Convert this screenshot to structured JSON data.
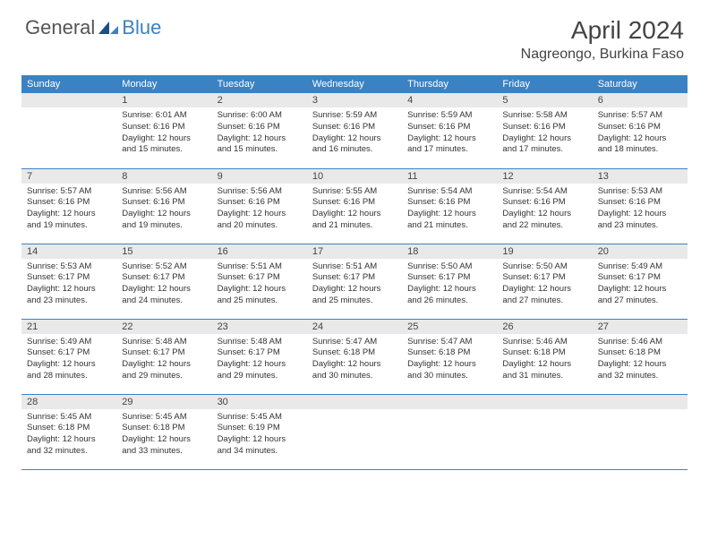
{
  "brand": {
    "general": "General",
    "blue": "Blue"
  },
  "title": "April 2024",
  "location": "Nagreongo, Burkina Faso",
  "colors": {
    "accent": "#3b82c4",
    "header_text": "#ffffff",
    "daybar": "#e9e9e9",
    "border": "#3b82c4",
    "body_bg": "#ffffff",
    "text": "#333333"
  },
  "day_headers": [
    "Sunday",
    "Monday",
    "Tuesday",
    "Wednesday",
    "Thursday",
    "Friday",
    "Saturday"
  ],
  "weeks": [
    [
      null,
      {
        "n": "1",
        "sr": "6:01 AM",
        "ss": "6:16 PM",
        "dl": "12 hours and 15 minutes."
      },
      {
        "n": "2",
        "sr": "6:00 AM",
        "ss": "6:16 PM",
        "dl": "12 hours and 15 minutes."
      },
      {
        "n": "3",
        "sr": "5:59 AM",
        "ss": "6:16 PM",
        "dl": "12 hours and 16 minutes."
      },
      {
        "n": "4",
        "sr": "5:59 AM",
        "ss": "6:16 PM",
        "dl": "12 hours and 17 minutes."
      },
      {
        "n": "5",
        "sr": "5:58 AM",
        "ss": "6:16 PM",
        "dl": "12 hours and 17 minutes."
      },
      {
        "n": "6",
        "sr": "5:57 AM",
        "ss": "6:16 PM",
        "dl": "12 hours and 18 minutes."
      }
    ],
    [
      {
        "n": "7",
        "sr": "5:57 AM",
        "ss": "6:16 PM",
        "dl": "12 hours and 19 minutes."
      },
      {
        "n": "8",
        "sr": "5:56 AM",
        "ss": "6:16 PM",
        "dl": "12 hours and 19 minutes."
      },
      {
        "n": "9",
        "sr": "5:56 AM",
        "ss": "6:16 PM",
        "dl": "12 hours and 20 minutes."
      },
      {
        "n": "10",
        "sr": "5:55 AM",
        "ss": "6:16 PM",
        "dl": "12 hours and 21 minutes."
      },
      {
        "n": "11",
        "sr": "5:54 AM",
        "ss": "6:16 PM",
        "dl": "12 hours and 21 minutes."
      },
      {
        "n": "12",
        "sr": "5:54 AM",
        "ss": "6:16 PM",
        "dl": "12 hours and 22 minutes."
      },
      {
        "n": "13",
        "sr": "5:53 AM",
        "ss": "6:16 PM",
        "dl": "12 hours and 23 minutes."
      }
    ],
    [
      {
        "n": "14",
        "sr": "5:53 AM",
        "ss": "6:17 PM",
        "dl": "12 hours and 23 minutes."
      },
      {
        "n": "15",
        "sr": "5:52 AM",
        "ss": "6:17 PM",
        "dl": "12 hours and 24 minutes."
      },
      {
        "n": "16",
        "sr": "5:51 AM",
        "ss": "6:17 PM",
        "dl": "12 hours and 25 minutes."
      },
      {
        "n": "17",
        "sr": "5:51 AM",
        "ss": "6:17 PM",
        "dl": "12 hours and 25 minutes."
      },
      {
        "n": "18",
        "sr": "5:50 AM",
        "ss": "6:17 PM",
        "dl": "12 hours and 26 minutes."
      },
      {
        "n": "19",
        "sr": "5:50 AM",
        "ss": "6:17 PM",
        "dl": "12 hours and 27 minutes."
      },
      {
        "n": "20",
        "sr": "5:49 AM",
        "ss": "6:17 PM",
        "dl": "12 hours and 27 minutes."
      }
    ],
    [
      {
        "n": "21",
        "sr": "5:49 AM",
        "ss": "6:17 PM",
        "dl": "12 hours and 28 minutes."
      },
      {
        "n": "22",
        "sr": "5:48 AM",
        "ss": "6:17 PM",
        "dl": "12 hours and 29 minutes."
      },
      {
        "n": "23",
        "sr": "5:48 AM",
        "ss": "6:17 PM",
        "dl": "12 hours and 29 minutes."
      },
      {
        "n": "24",
        "sr": "5:47 AM",
        "ss": "6:18 PM",
        "dl": "12 hours and 30 minutes."
      },
      {
        "n": "25",
        "sr": "5:47 AM",
        "ss": "6:18 PM",
        "dl": "12 hours and 30 minutes."
      },
      {
        "n": "26",
        "sr": "5:46 AM",
        "ss": "6:18 PM",
        "dl": "12 hours and 31 minutes."
      },
      {
        "n": "27",
        "sr": "5:46 AM",
        "ss": "6:18 PM",
        "dl": "12 hours and 32 minutes."
      }
    ],
    [
      {
        "n": "28",
        "sr": "5:45 AM",
        "ss": "6:18 PM",
        "dl": "12 hours and 32 minutes."
      },
      {
        "n": "29",
        "sr": "5:45 AM",
        "ss": "6:18 PM",
        "dl": "12 hours and 33 minutes."
      },
      {
        "n": "30",
        "sr": "5:45 AM",
        "ss": "6:19 PM",
        "dl": "12 hours and 34 minutes."
      },
      null,
      null,
      null,
      null
    ]
  ],
  "labels": {
    "sunrise": "Sunrise:",
    "sunset": "Sunset:",
    "daylight": "Daylight:"
  }
}
